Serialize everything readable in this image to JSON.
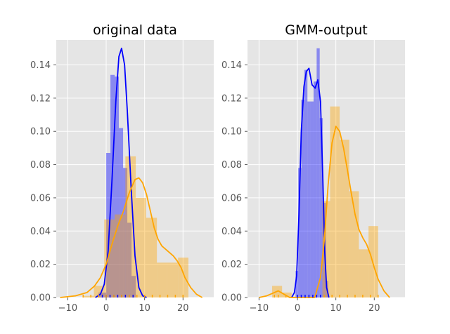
{
  "chart_data": [
    {
      "type": "histogram",
      "title": "original data",
      "xlim": [
        -13,
        28
      ],
      "ylim": [
        0,
        0.155
      ],
      "xticks": [
        -10,
        0,
        10,
        20
      ],
      "yticks": [
        0.0,
        0.02,
        0.04,
        0.06,
        0.08,
        0.1,
        0.12,
        0.14
      ],
      "grid": true,
      "colors": {
        "blue": "#0000ff",
        "orange": "#ffa500",
        "background": "#e5e5e5"
      },
      "series": [
        {
          "color": "blue",
          "bins": [
            [
              -2,
              0,
              0.003
            ],
            [
              0,
              1.1,
              0.087
            ],
            [
              1.1,
              2.2,
              0.134
            ],
            [
              2.2,
              3.3,
              0.133
            ],
            [
              3.3,
              4.4,
              0.102
            ],
            [
              4.4,
              5.5,
              0.078
            ],
            [
              5.5,
              6.6,
              0.045
            ],
            [
              6.6,
              7.7,
              0.013
            ]
          ],
          "kde": [
            [
              -2.8,
              0
            ],
            [
              -1.5,
              0.002
            ],
            [
              -0.5,
              0.008
            ],
            [
              0.5,
              0.028
            ],
            [
              1.5,
              0.07
            ],
            [
              2.5,
              0.118
            ],
            [
              3.3,
              0.145
            ],
            [
              4.0,
              0.15
            ],
            [
              4.8,
              0.14
            ],
            [
              5.5,
              0.112
            ],
            [
              6.5,
              0.066
            ],
            [
              7.5,
              0.025
            ],
            [
              8.5,
              0.006
            ],
            [
              9.5,
              0.001
            ],
            [
              10.5,
              0
            ]
          ],
          "rug": [
            -1,
            0,
            1,
            2,
            3,
            4,
            5,
            6,
            7
          ]
        },
        {
          "color": "orange",
          "bins": [
            [
              -6,
              -3.2,
              0.001
            ],
            [
              -3.2,
              -0.5,
              0.007
            ],
            [
              -0.5,
              2.2,
              0.047
            ],
            [
              2.2,
              5.0,
              0.05
            ],
            [
              5.0,
              7.7,
              0.085
            ],
            [
              7.7,
              10.4,
              0.06
            ],
            [
              10.4,
              13.2,
              0.048
            ],
            [
              13.2,
              15.9,
              0.021
            ],
            [
              15.9,
              18.7,
              0.021
            ],
            [
              18.7,
              21.4,
              0.024
            ]
          ],
          "kde": [
            [
              -12,
              0.0
            ],
            [
              -8,
              0.001
            ],
            [
              -5,
              0.003
            ],
            [
              -3,
              0.007
            ],
            [
              -1.5,
              0.012
            ],
            [
              0,
              0.02
            ],
            [
              1.5,
              0.032
            ],
            [
              3,
              0.043
            ],
            [
              4.5,
              0.052
            ],
            [
              6,
              0.063
            ],
            [
              7.5,
              0.071
            ],
            [
              8.5,
              0.072
            ],
            [
              9.5,
              0.069
            ],
            [
              10.5,
              0.062
            ],
            [
              11.5,
              0.052
            ],
            [
              12.5,
              0.042
            ],
            [
              13.5,
              0.035
            ],
            [
              14.5,
              0.031
            ],
            [
              15.5,
              0.029
            ],
            [
              16.5,
              0.027
            ],
            [
              17.5,
              0.025
            ],
            [
              18.5,
              0.022
            ],
            [
              19.5,
              0.018
            ],
            [
              20.5,
              0.012
            ],
            [
              22,
              0.006
            ],
            [
              23.5,
              0.002
            ],
            [
              25,
              0.0
            ]
          ],
          "rug": [
            -6,
            -4,
            -2,
            0,
            2,
            4,
            6,
            8,
            10,
            12,
            14,
            16,
            18,
            20
          ]
        }
      ]
    },
    {
      "type": "histogram",
      "title": "GMM-output",
      "xlim": [
        -13,
        28
      ],
      "ylim": [
        0,
        0.155
      ],
      "xticks": [
        -10,
        0,
        10,
        20
      ],
      "yticks": [
        0.0,
        0.02,
        0.04,
        0.06,
        0.08,
        0.1,
        0.12,
        0.14
      ],
      "grid": true,
      "colors": {
        "blue": "#0000ff",
        "orange": "#ffa500",
        "background": "#e5e5e5"
      },
      "series": [
        {
          "color": "blue",
          "bins": [
            [
              -0.5,
              0.2,
              0.016
            ],
            [
              0.2,
              1.0,
              0.078
            ],
            [
              1.0,
              1.8,
              0.119
            ],
            [
              1.8,
              2.6,
              0.137
            ],
            [
              2.6,
              3.4,
              0.118
            ],
            [
              3.4,
              4.2,
              0.118
            ],
            [
              4.2,
              5.0,
              0.13
            ],
            [
              5.0,
              5.8,
              0.15
            ],
            [
              5.8,
              6.6,
              0.108
            ],
            [
              6.6,
              7.4,
              0.057
            ],
            [
              7.4,
              8.0,
              0.01
            ]
          ],
          "kde": [
            [
              -1.5,
              0
            ],
            [
              -0.8,
              0.003
            ],
            [
              -0.2,
              0.013
            ],
            [
              0.4,
              0.05
            ],
            [
              1.0,
              0.1
            ],
            [
              1.7,
              0.127
            ],
            [
              2.3,
              0.136
            ],
            [
              3.0,
              0.138
            ],
            [
              3.8,
              0.128
            ],
            [
              4.6,
              0.126
            ],
            [
              5.3,
              0.131
            ],
            [
              6.0,
              0.118
            ],
            [
              6.6,
              0.072
            ],
            [
              7.1,
              0.028
            ],
            [
              7.6,
              0.006
            ],
            [
              8.2,
              0.0
            ]
          ],
          "rug": [
            0,
            1,
            2,
            3,
            4,
            5,
            6,
            7
          ]
        },
        {
          "color": "orange",
          "bins": [
            [
              -6.6,
              -4.0,
              0.007
            ],
            [
              -4.0,
              -1.5,
              0.003
            ],
            [
              6.5,
              8.5,
              0.058
            ],
            [
              8.5,
              11.0,
              0.115
            ],
            [
              11.0,
              13.5,
              0.095
            ],
            [
              13.5,
              16.0,
              0.064
            ],
            [
              16.0,
              18.5,
              0.029
            ],
            [
              18.5,
              21.0,
              0.043
            ]
          ],
          "kde": [
            [
              -10,
              0.0
            ],
            [
              -8,
              0.001
            ],
            [
              -6,
              0.003
            ],
            [
              -5,
              0.004
            ],
            [
              -3.5,
              0.002
            ],
            [
              -2,
              0.0
            ],
            [
              4.5,
              0.0
            ],
            [
              6,
              0.012
            ],
            [
              7,
              0.035
            ],
            [
              8,
              0.068
            ],
            [
              9,
              0.093
            ],
            [
              10,
              0.103
            ],
            [
              11,
              0.1
            ],
            [
              12,
              0.09
            ],
            [
              13,
              0.077
            ],
            [
              14,
              0.063
            ],
            [
              15,
              0.05
            ],
            [
              16,
              0.041
            ],
            [
              17,
              0.036
            ],
            [
              18,
              0.032
            ],
            [
              19,
              0.026
            ],
            [
              20,
              0.018
            ],
            [
              21,
              0.011
            ],
            [
              22.5,
              0.004
            ],
            [
              24,
              0.0
            ]
          ],
          "rug": [
            -6,
            -5,
            -3,
            7,
            9,
            11,
            13,
            15,
            17,
            19,
            21
          ]
        }
      ]
    }
  ]
}
